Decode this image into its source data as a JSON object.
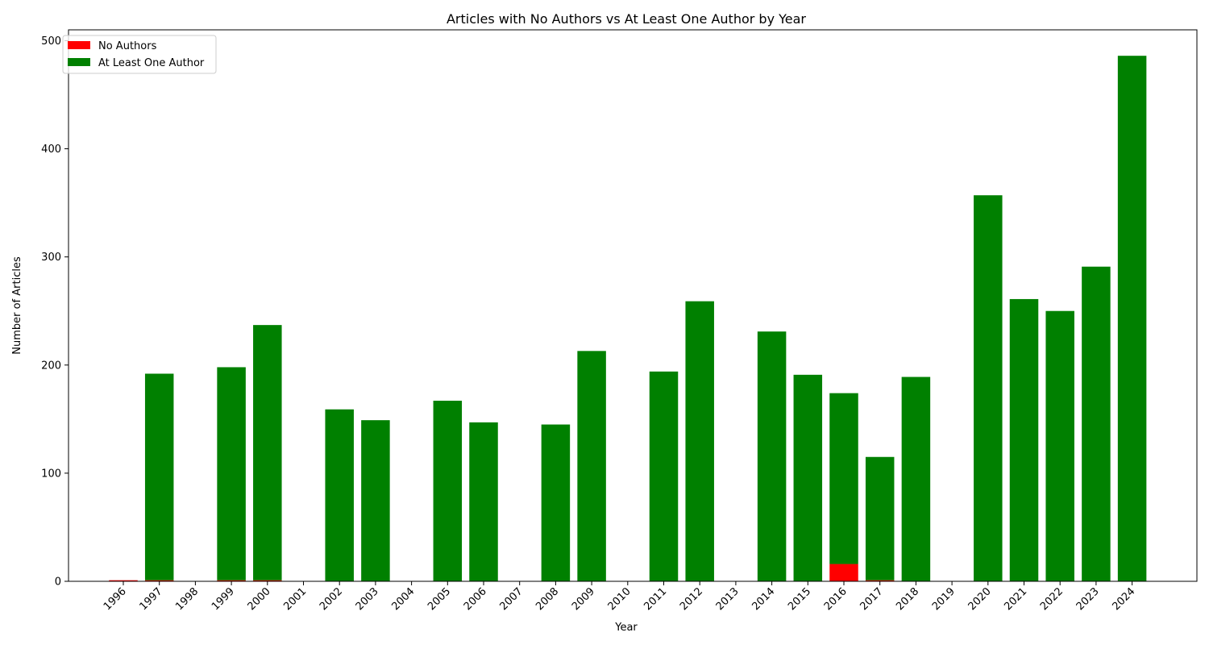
{
  "chart_data": {
    "type": "bar",
    "stacked": true,
    "title": "Articles with No Authors vs At Least One Author by Year",
    "xlabel": "Year",
    "ylabel": "Number of Articles",
    "ylim": [
      0,
      510
    ],
    "yticks": [
      0,
      100,
      200,
      300,
      400,
      500
    ],
    "grid": false,
    "legend_position": "top-left",
    "categories": [
      "1996",
      "1997",
      "1998",
      "1999",
      "2000",
      "2001",
      "2002",
      "2003",
      "2004",
      "2005",
      "2006",
      "2007",
      "2008",
      "2009",
      "2010",
      "2011",
      "2012",
      "2013",
      "2014",
      "2015",
      "2016",
      "2017",
      "2018",
      "2019",
      "2020",
      "2021",
      "2022",
      "2023",
      "2024"
    ],
    "series": [
      {
        "name": "No Authors",
        "color": "#ff0000",
        "values": [
          1,
          1,
          0,
          1,
          1,
          0,
          0,
          0,
          0,
          0,
          0,
          0,
          0,
          0,
          0,
          0,
          0,
          0,
          0,
          0,
          16,
          1,
          0,
          0,
          0,
          0,
          0,
          0,
          0
        ]
      },
      {
        "name": "At Least One Author",
        "color": "#008000",
        "values": [
          0,
          191,
          0,
          197,
          236,
          0,
          159,
          149,
          0,
          167,
          147,
          0,
          145,
          213,
          0,
          194,
          259,
          0,
          231,
          191,
          158,
          114,
          189,
          0,
          357,
          261,
          250,
          291,
          486
        ]
      }
    ]
  }
}
